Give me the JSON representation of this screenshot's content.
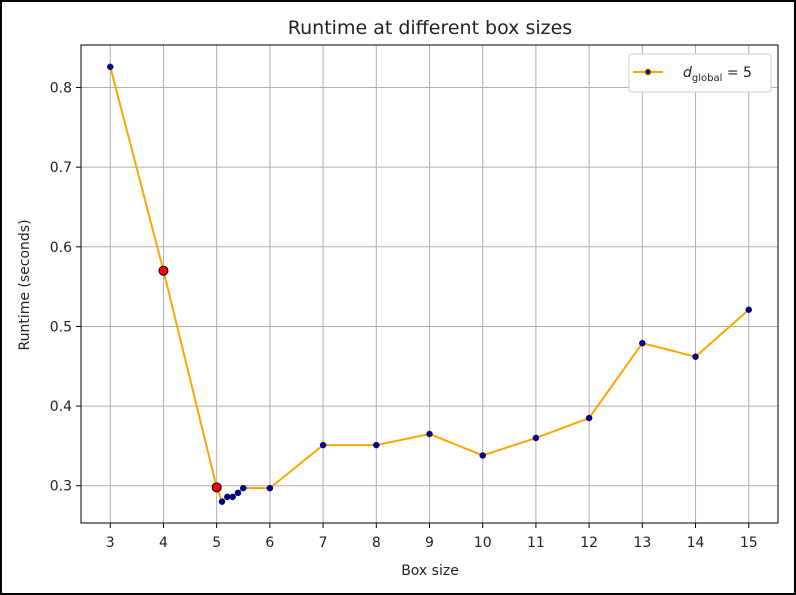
{
  "chart_data": {
    "type": "line",
    "title": "Runtime at different box sizes",
    "xlabel": "Box size",
    "ylabel": "Runtime (seconds)",
    "xlim": [
      2.45,
      15.55
    ],
    "ylim": [
      0.2532,
      0.8534
    ],
    "xticks": [
      3,
      4,
      5,
      6,
      7,
      8,
      9,
      10,
      11,
      12,
      13,
      14,
      15
    ],
    "yticks": [
      0.3,
      0.4,
      0.5,
      0.6,
      0.7,
      0.8
    ],
    "grid": true,
    "legend_position": "top-right",
    "series": [
      {
        "legend_symbol": "d",
        "legend_subscript": "global",
        "legend_suffix": " = 5",
        "color": "#ffa500",
        "marker_face": "#000080",
        "x": [
          3,
          4,
          5,
          5.1,
          5.2,
          5.3,
          5.4,
          5.5,
          6,
          7,
          8,
          9,
          10,
          11,
          12,
          13,
          14,
          15
        ],
        "y": [
          0.826,
          0.57,
          0.298,
          0.28,
          0.286,
          0.286,
          0.291,
          0.297,
          0.297,
          0.351,
          0.351,
          0.365,
          0.338,
          0.36,
          0.385,
          0.479,
          0.462,
          0.521
        ]
      }
    ],
    "highlighted": {
      "color": "#ff0000",
      "x": [
        4,
        5
      ],
      "y": [
        0.57,
        0.298
      ]
    }
  }
}
